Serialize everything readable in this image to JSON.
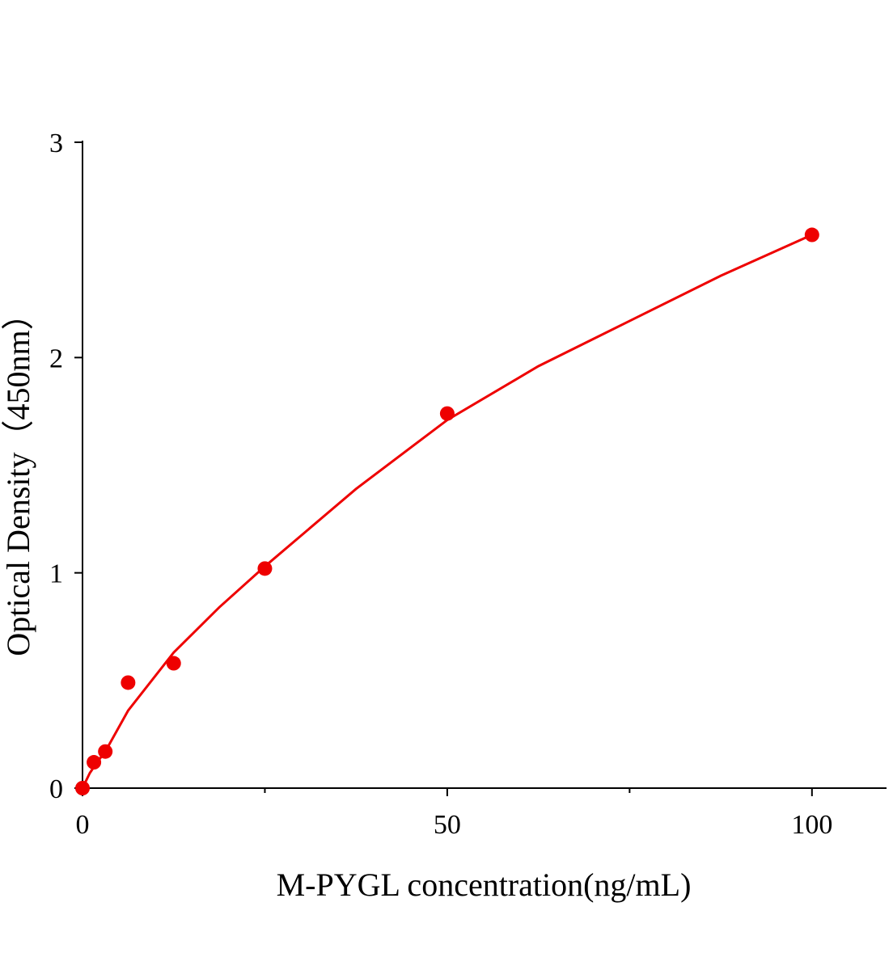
{
  "chart_data": {
    "type": "scatter",
    "x_label": "M-PYGL concentration(ng/mL)",
    "y_label": "Optical Density（450nm）",
    "xlim": [
      0,
      110
    ],
    "xticks": [
      0,
      50,
      100
    ],
    "xminorticks": [
      25,
      75
    ],
    "ylim": [
      0,
      3
    ],
    "yticks": [
      0,
      1,
      2,
      3
    ],
    "series": [
      {
        "color": "#ee0000",
        "marker": true,
        "x": [
          0,
          1.5625,
          3.125,
          6.25,
          12.5,
          25,
          50,
          100
        ],
        "values": [
          0,
          0.12,
          0.17,
          0.49,
          0.58,
          1.02,
          1.74,
          2.57
        ]
      },
      {
        "color": "#ee0000",
        "line": true,
        "x": [
          0,
          1,
          2,
          3.125,
          6.25,
          12.5,
          18.75,
          25,
          37.5,
          50,
          62.5,
          75,
          87.5,
          100
        ],
        "values": [
          0,
          0.07,
          0.12,
          0.17,
          0.36,
          0.63,
          0.84,
          1.03,
          1.39,
          1.71,
          1.96,
          2.17,
          2.38,
          2.57
        ]
      }
    ]
  }
}
